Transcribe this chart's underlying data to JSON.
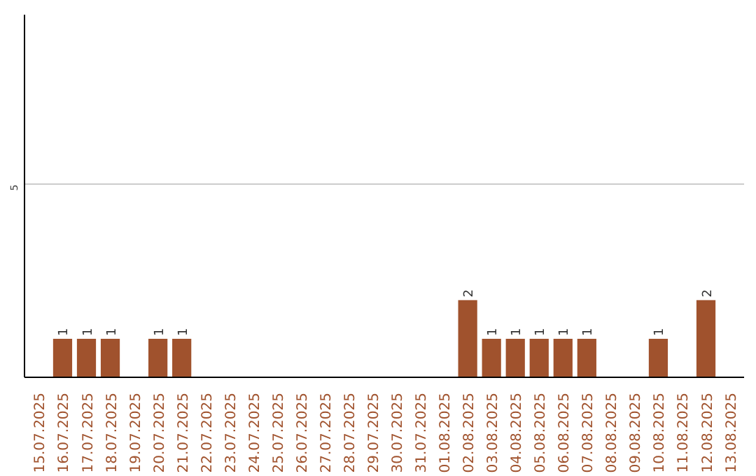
{
  "chart_data": {
    "type": "bar",
    "categories": [
      "15.07.2025",
      "16.07.2025",
      "17.07.2025",
      "18.07.2025",
      "19.07.2025",
      "20.07.2025",
      "21.07.2025",
      "22.07.2025",
      "23.07.2025",
      "24.07.2025",
      "25.07.2025",
      "26.07.2025",
      "27.07.2025",
      "28.07.2025",
      "29.07.2025",
      "30.07.2025",
      "31.07.2025",
      "01.08.2025",
      "02.08.2025",
      "03.08.2025",
      "04.08.2025",
      "05.08.2025",
      "06.08.2025",
      "07.08.2025",
      "08.08.2025",
      "09.08.2025",
      "10.08.2025",
      "11.08.2025",
      "12.08.2025",
      "13.08.2025"
    ],
    "values": [
      0,
      1,
      1,
      1,
      0,
      1,
      1,
      0,
      0,
      0,
      0,
      0,
      0,
      0,
      0,
      0,
      0,
      0,
      2,
      1,
      1,
      1,
      1,
      1,
      0,
      0,
      1,
      0,
      2,
      0
    ],
    "value_labels": [
      null,
      "1",
      "1",
      "1",
      null,
      "1",
      "1",
      null,
      null,
      null,
      null,
      null,
      null,
      null,
      null,
      null,
      null,
      null,
      "2",
      "1",
      "1",
      "1",
      "1",
      "1",
      null,
      null,
      "1",
      null,
      "2",
      null
    ],
    "color": "#a0522d",
    "ylim": [
      0,
      9.4
    ],
    "yticks": [
      5
    ],
    "grid": "y"
  }
}
